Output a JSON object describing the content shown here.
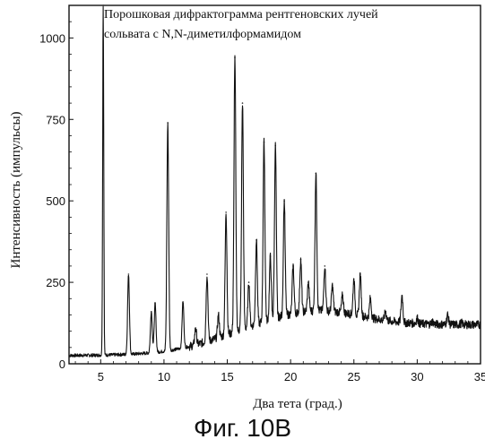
{
  "chart_data": {
    "type": "line",
    "title_lines": [
      "Порошковая дифрактограмма рентгеновских лучей",
      "сольвата с N,N-диметилформамидом"
    ],
    "xlabel": "Два тета (град.)",
    "ylabel": "Интенсивность (импульсы)",
    "xlim": [
      2.5,
      35
    ],
    "ylim": [
      0,
      1100
    ],
    "x_ticks": [
      "5",
      "10",
      "15",
      "20",
      "25",
      "30",
      "35"
    ],
    "y_ticks": [
      "0",
      "250",
      "500",
      "750",
      "1000"
    ],
    "x_tick_values": [
      5,
      10,
      15,
      20,
      25,
      30,
      35
    ],
    "y_tick_values": [
      0,
      250,
      500,
      750,
      1000
    ],
    "grid": false,
    "legend": "none",
    "line_color": "#111111",
    "peaks": [
      {
        "x": 5.2,
        "y": 1100
      },
      {
        "x": 7.2,
        "y": 275
      },
      {
        "x": 9.0,
        "y": 160
      },
      {
        "x": 9.3,
        "y": 185
      },
      {
        "x": 10.3,
        "y": 740
      },
      {
        "x": 11.5,
        "y": 190
      },
      {
        "x": 12.5,
        "y": 110
      },
      {
        "x": 13.4,
        "y": 275
      },
      {
        "x": 14.3,
        "y": 150
      },
      {
        "x": 14.9,
        "y": 465
      },
      {
        "x": 15.6,
        "y": 940
      },
      {
        "x": 16.2,
        "y": 800
      },
      {
        "x": 16.7,
        "y": 250
      },
      {
        "x": 17.3,
        "y": 380
      },
      {
        "x": 17.9,
        "y": 680
      },
      {
        "x": 18.4,
        "y": 330
      },
      {
        "x": 18.8,
        "y": 670
      },
      {
        "x": 19.5,
        "y": 500
      },
      {
        "x": 20.2,
        "y": 300
      },
      {
        "x": 20.8,
        "y": 320
      },
      {
        "x": 21.4,
        "y": 250
      },
      {
        "x": 22.0,
        "y": 585
      },
      {
        "x": 22.7,
        "y": 300
      },
      {
        "x": 23.3,
        "y": 240
      },
      {
        "x": 24.1,
        "y": 210
      },
      {
        "x": 25.0,
        "y": 260
      },
      {
        "x": 25.5,
        "y": 275
      },
      {
        "x": 26.3,
        "y": 200
      },
      {
        "x": 27.5,
        "y": 160
      },
      {
        "x": 28.8,
        "y": 210
      },
      {
        "x": 30.0,
        "y": 140
      },
      {
        "x": 31.2,
        "y": 130
      },
      {
        "x": 32.4,
        "y": 150
      },
      {
        "x": 33.5,
        "y": 125
      },
      {
        "x": 34.5,
        "y": 120
      }
    ]
  },
  "figure_caption": "Фиг. 10B"
}
